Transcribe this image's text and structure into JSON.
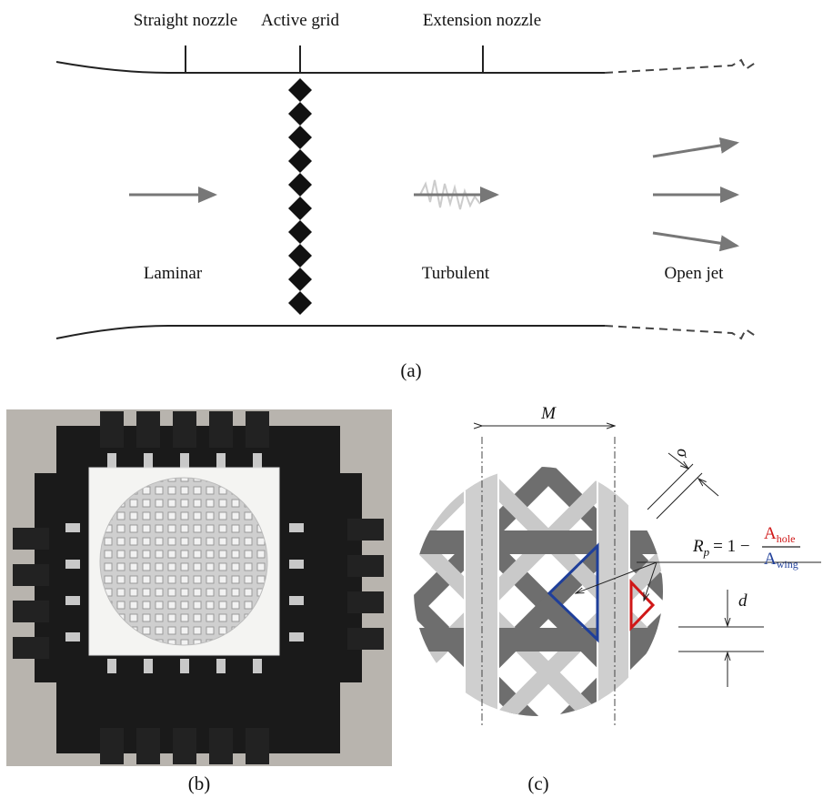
{
  "panel_a": {
    "labels": {
      "straight_nozzle": "Straight nozzle",
      "active_grid": "Active grid",
      "extension_nozzle": "Extension nozzle",
      "laminar": "Laminar",
      "turbulent": "Turbulent",
      "open_jet": "Open jet"
    },
    "caption": "(a)"
  },
  "panel_b": {
    "caption": "(b)"
  },
  "panel_c": {
    "caption": "(c)",
    "dimensions": {
      "mesh": "M",
      "thickness": "σ",
      "width": "d"
    },
    "formula": {
      "symbol": "R",
      "subscript": "p",
      "operator": "= 1 −",
      "numerator": "A",
      "numerator_subscript": "hole",
      "denominator": "A",
      "denominator_subscript": "wing"
    }
  }
}
